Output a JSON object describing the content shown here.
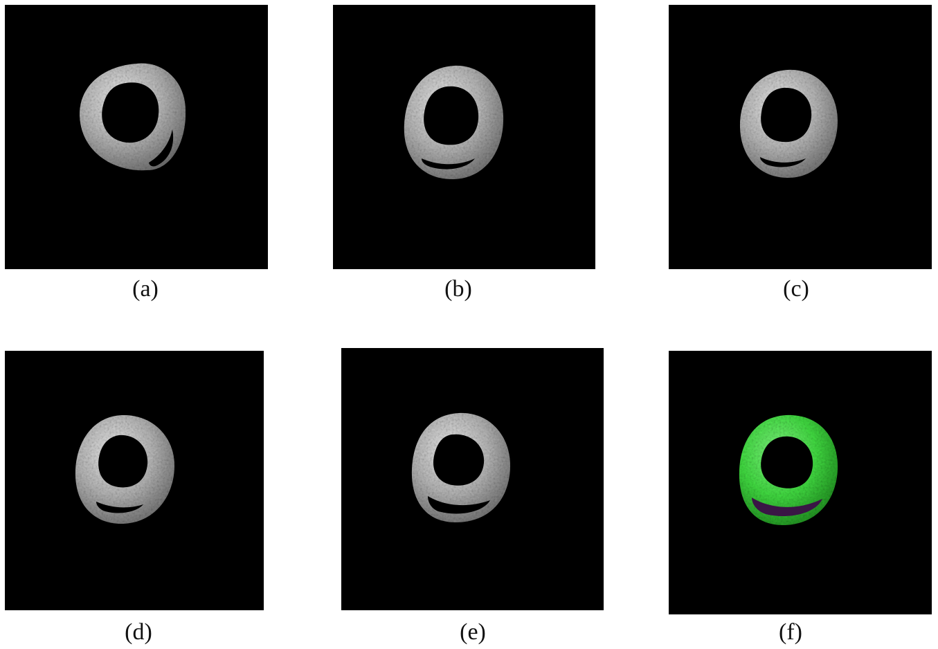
{
  "figure": {
    "panels": [
      {
        "id": "a",
        "caption": "(a)",
        "tint": "gray"
      },
      {
        "id": "b",
        "caption": "(b)",
        "tint": "gray"
      },
      {
        "id": "c",
        "caption": "(c)",
        "tint": "gray"
      },
      {
        "id": "d",
        "caption": "(d)",
        "tint": "gray"
      },
      {
        "id": "e",
        "caption": "(e)",
        "tint": "gray"
      },
      {
        "id": "f",
        "caption": "(f)",
        "tint": "green"
      }
    ],
    "colors": {
      "background": "#000000",
      "gray_ring": "#b9b9b9",
      "green_ring": "#3fd53f",
      "green_cavity": "#3a1645"
    }
  }
}
